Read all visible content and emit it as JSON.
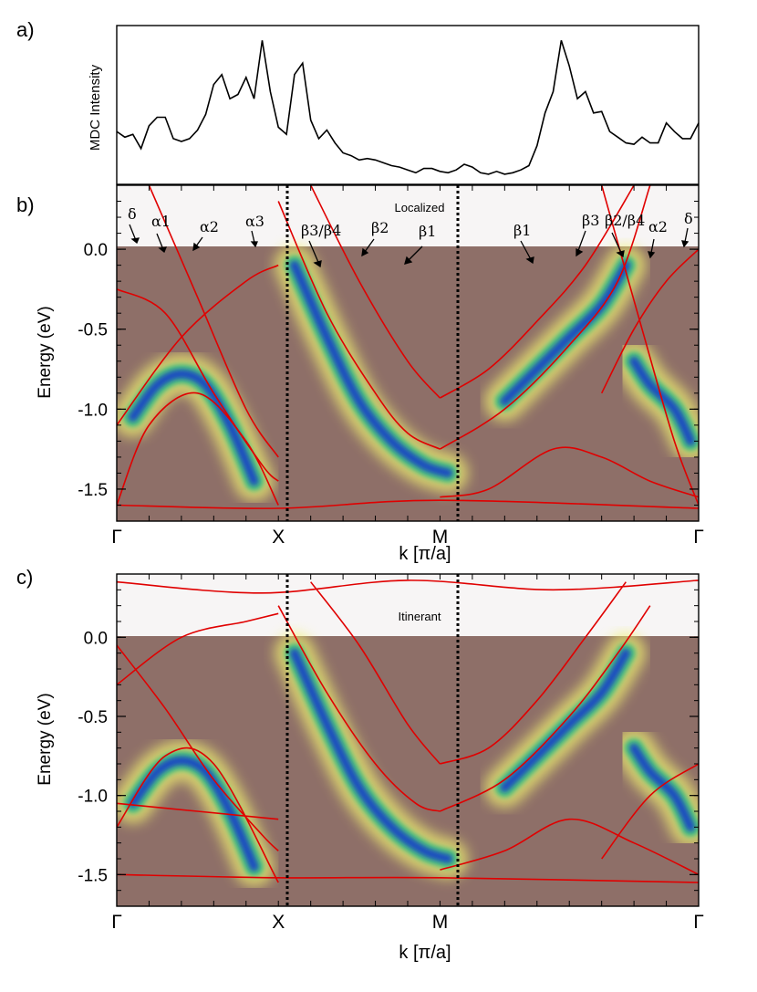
{
  "colors": {
    "band": "#e00000",
    "intensity_base": "#8e6f68",
    "intensity_high": "#1840c8",
    "intensity_mid": "#30c080",
    "intensity_low": "#f0f070"
  },
  "panel_a": {
    "label": "a)",
    "ylabel": "MDC Intensity"
  },
  "panel_b": {
    "label": "b)",
    "annotation": "Localized",
    "ylabel": "Energy (eV)",
    "xlabel": "k  [π/a]",
    "band_labels": [
      "δ",
      "α1",
      "α2",
      "α3",
      "β3/β4",
      "β2",
      "β1",
      "β1",
      "β3",
      "β2/β4",
      "α2",
      "δ"
    ]
  },
  "panel_c": {
    "label": "c)",
    "annotation": "Itinerant",
    "ylabel": "Energy (eV)",
    "xlabel": "k  [π/a]"
  },
  "chart_data": [
    {
      "type": "line",
      "panel": "a",
      "ylabel": "MDC Intensity",
      "x": [
        0,
        0.05,
        0.1,
        0.15,
        0.2,
        0.25,
        0.3,
        0.35,
        0.4,
        0.45,
        0.5,
        0.55,
        0.6,
        0.65,
        0.7,
        0.75,
        0.8,
        0.85,
        0.9,
        0.95,
        1.0,
        1.05,
        1.1,
        1.15,
        1.2,
        1.25,
        1.3,
        1.35,
        1.4,
        1.45,
        1.5,
        1.55,
        1.6,
        1.65,
        1.7,
        1.75,
        1.8,
        1.85,
        1.9,
        1.95,
        2.0,
        2.05,
        2.1,
        2.15,
        2.2,
        2.25,
        2.3,
        2.35,
        2.4,
        2.45,
        2.5,
        2.55,
        2.6,
        2.65,
        2.7,
        2.75,
        2.8,
        2.85,
        2.9,
        2.95,
        3.0,
        3.05,
        3.1,
        3.15,
        3.2,
        3.25,
        3.3,
        3.35,
        3.4,
        3.45,
        3.5,
        3.55,
        3.6
      ],
      "values": [
        0.32,
        0.28,
        0.3,
        0.2,
        0.36,
        0.42,
        0.42,
        0.27,
        0.25,
        0.27,
        0.33,
        0.44,
        0.65,
        0.72,
        0.55,
        0.58,
        0.7,
        0.55,
        0.96,
        0.6,
        0.35,
        0.3,
        0.72,
        0.8,
        0.4,
        0.27,
        0.33,
        0.24,
        0.17,
        0.15,
        0.12,
        0.13,
        0.12,
        0.1,
        0.08,
        0.07,
        0.05,
        0.03,
        0.06,
        0.06,
        0.04,
        0.03,
        0.05,
        0.09,
        0.07,
        0.03,
        0.02,
        0.04,
        0.02,
        0.03,
        0.05,
        0.08,
        0.22,
        0.45,
        0.6,
        0.96,
        0.78,
        0.55,
        0.6,
        0.45,
        0.46,
        0.32,
        0.28,
        0.24,
        0.23,
        0.28,
        0.24,
        0.24,
        0.38,
        0.32,
        0.27,
        0.27,
        0.38
      ],
      "xlim": [
        0,
        3.6
      ],
      "ylim": [
        0,
        1
      ]
    },
    {
      "type": "heatmap",
      "panel": "b",
      "ylabel": "Energy (eV)",
      "xlabel": "k  [π/a]",
      "ylim": [
        -1.7,
        0.4
      ],
      "yticks": [
        0.0,
        -0.5,
        -1.0,
        -1.5
      ],
      "ytick_labels": [
        "0.0",
        "-0.5",
        "-1.0",
        "-1.5"
      ],
      "xticks": [
        0,
        1,
        2,
        3.6
      ],
      "xtick_labels": [
        "Γ",
        "X",
        "M",
        "Γ"
      ],
      "xlim": [
        0,
        3.6
      ],
      "intensity_branches": [
        {
          "x": [
            0.1,
            0.25,
            0.4,
            0.55,
            0.7,
            0.85
          ],
          "y": [
            -1.05,
            -0.85,
            -0.78,
            -0.85,
            -1.1,
            -1.45
          ]
        },
        {
          "x": [
            1.1,
            1.3,
            1.5,
            1.7,
            1.9,
            2.05
          ],
          "y": [
            -0.1,
            -0.55,
            -0.95,
            -1.2,
            -1.35,
            -1.4
          ]
        },
        {
          "x": [
            2.4,
            2.6,
            2.8,
            3.0,
            3.15
          ],
          "y": [
            -0.95,
            -0.75,
            -0.55,
            -0.35,
            -0.1
          ]
        },
        {
          "x": [
            3.2,
            3.3,
            3.45,
            3.55
          ],
          "y": [
            -0.7,
            -0.85,
            -1.0,
            -1.2
          ]
        }
      ],
      "band_lines": [
        {
          "x": [
            0.0,
            0.3,
            0.6,
            0.9,
            1.0
          ],
          "y": [
            -0.25,
            -0.4,
            -0.9,
            -1.35,
            -1.45
          ]
        },
        {
          "x": [
            0.0,
            0.2,
            0.5,
            0.8,
            1.0
          ],
          "y": [
            -1.6,
            -1.1,
            -0.9,
            -1.2,
            -1.6
          ]
        },
        {
          "x": [
            0.2,
            0.5,
            0.8,
            1.0
          ],
          "y": [
            0.4,
            -0.3,
            -1.0,
            -1.3
          ]
        },
        {
          "x": [
            0.0,
            0.4,
            0.8,
            1.0
          ],
          "y": [
            -1.1,
            -0.55,
            -0.2,
            -0.1
          ]
        },
        {
          "x": [
            1.0,
            1.3,
            1.6,
            1.8,
            2.0
          ],
          "y": [
            0.3,
            -0.4,
            -0.9,
            -1.15,
            -1.25
          ]
        },
        {
          "x": [
            1.2,
            1.5,
            1.8,
            2.0
          ],
          "y": [
            0.4,
            -0.2,
            -0.7,
            -0.93
          ]
        },
        {
          "x": [
            2.0,
            2.3,
            2.6,
            2.9,
            3.2
          ],
          "y": [
            -0.93,
            -0.75,
            -0.45,
            -0.1,
            0.4
          ]
        },
        {
          "x": [
            2.0,
            2.4,
            2.8,
            3.1,
            3.3
          ],
          "y": [
            -1.25,
            -1.0,
            -0.6,
            -0.2,
            0.4
          ]
        },
        {
          "x": [
            2.0,
            2.3,
            2.7,
            3.0,
            3.3,
            3.6
          ],
          "y": [
            -1.55,
            -1.5,
            -1.25,
            -1.3,
            -1.45,
            -1.55
          ]
        },
        {
          "x": [
            3.0,
            3.2,
            3.4,
            3.6
          ],
          "y": [
            -0.9,
            -0.5,
            -0.2,
            0.0
          ]
        },
        {
          "x": [
            3.0,
            3.25,
            3.45,
            3.6
          ],
          "y": [
            0.4,
            -0.5,
            -1.2,
            -1.6
          ]
        },
        {
          "x": [
            0.0,
            1.0,
            2.0,
            3.6
          ],
          "y": [
            -1.6,
            -1.62,
            -1.57,
            -1.62
          ]
        }
      ]
    },
    {
      "type": "heatmap",
      "panel": "c",
      "ylabel": "Energy (eV)",
      "xlabel": "k  [π/a]",
      "ylim": [
        -1.7,
        0.4
      ],
      "yticks": [
        0.0,
        -0.5,
        -1.0,
        -1.5
      ],
      "ytick_labels": [
        "0.0",
        "-0.5",
        "-1.0",
        "-1.5"
      ],
      "xticks": [
        0,
        1,
        2,
        3.6
      ],
      "xtick_labels": [
        "Γ",
        "X",
        "M",
        "Γ"
      ],
      "xlim": [
        0,
        3.6
      ],
      "intensity_branches": [
        {
          "x": [
            0.1,
            0.25,
            0.4,
            0.55,
            0.7,
            0.85
          ],
          "y": [
            -1.05,
            -0.85,
            -0.78,
            -0.85,
            -1.1,
            -1.45
          ]
        },
        {
          "x": [
            1.1,
            1.3,
            1.5,
            1.7,
            1.9,
            2.05
          ],
          "y": [
            -0.1,
            -0.55,
            -0.95,
            -1.2,
            -1.35,
            -1.4
          ]
        },
        {
          "x": [
            2.4,
            2.6,
            2.8,
            3.0,
            3.15
          ],
          "y": [
            -0.95,
            -0.75,
            -0.55,
            -0.35,
            -0.1
          ]
        },
        {
          "x": [
            3.2,
            3.3,
            3.45,
            3.55
          ],
          "y": [
            -0.7,
            -0.85,
            -1.0,
            -1.2
          ]
        }
      ],
      "band_lines": [
        {
          "x": [
            0.0,
            0.3,
            0.6,
            0.9,
            1.0
          ],
          "y": [
            -0.05,
            -0.45,
            -0.9,
            -1.25,
            -1.35
          ]
        },
        {
          "x": [
            0.0,
            0.3,
            0.6,
            1.0
          ],
          "y": [
            -1.2,
            -0.75,
            -0.8,
            -1.55
          ]
        },
        {
          "x": [
            0.0,
            0.5,
            1.0
          ],
          "y": [
            -1.05,
            -1.1,
            -1.15
          ]
        },
        {
          "x": [
            0.0,
            0.4,
            0.8,
            1.0
          ],
          "y": [
            -0.3,
            0.0,
            0.1,
            0.15
          ]
        },
        {
          "x": [
            1.0,
            1.3,
            1.6,
            1.85,
            2.0
          ],
          "y": [
            0.2,
            -0.35,
            -0.8,
            -1.05,
            -1.1
          ]
        },
        {
          "x": [
            1.2,
            1.5,
            1.8,
            2.0
          ],
          "y": [
            0.35,
            -0.05,
            -0.55,
            -0.8
          ]
        },
        {
          "x": [
            2.0,
            2.3,
            2.6,
            2.9,
            3.15
          ],
          "y": [
            -0.8,
            -0.7,
            -0.4,
            0.0,
            0.35
          ]
        },
        {
          "x": [
            2.0,
            2.4,
            2.8,
            3.1,
            3.3
          ],
          "y": [
            -1.1,
            -0.9,
            -0.5,
            -0.1,
            0.2
          ]
        },
        {
          "x": [
            2.0,
            2.4,
            2.8,
            3.2,
            3.6
          ],
          "y": [
            -1.47,
            -1.35,
            -1.15,
            -1.3,
            -1.5
          ]
        },
        {
          "x": [
            3.0,
            3.3,
            3.6
          ],
          "y": [
            -1.4,
            -1.0,
            -0.8
          ]
        },
        {
          "x": [
            0.0,
            0.9,
            1.8,
            2.7,
            3.6
          ],
          "y": [
            0.35,
            0.28,
            0.36,
            0.3,
            0.36
          ]
        },
        {
          "x": [
            0.0,
            1.0,
            2.0,
            3.6
          ],
          "y": [
            -1.5,
            -1.52,
            -1.52,
            -1.55
          ]
        }
      ]
    }
  ]
}
